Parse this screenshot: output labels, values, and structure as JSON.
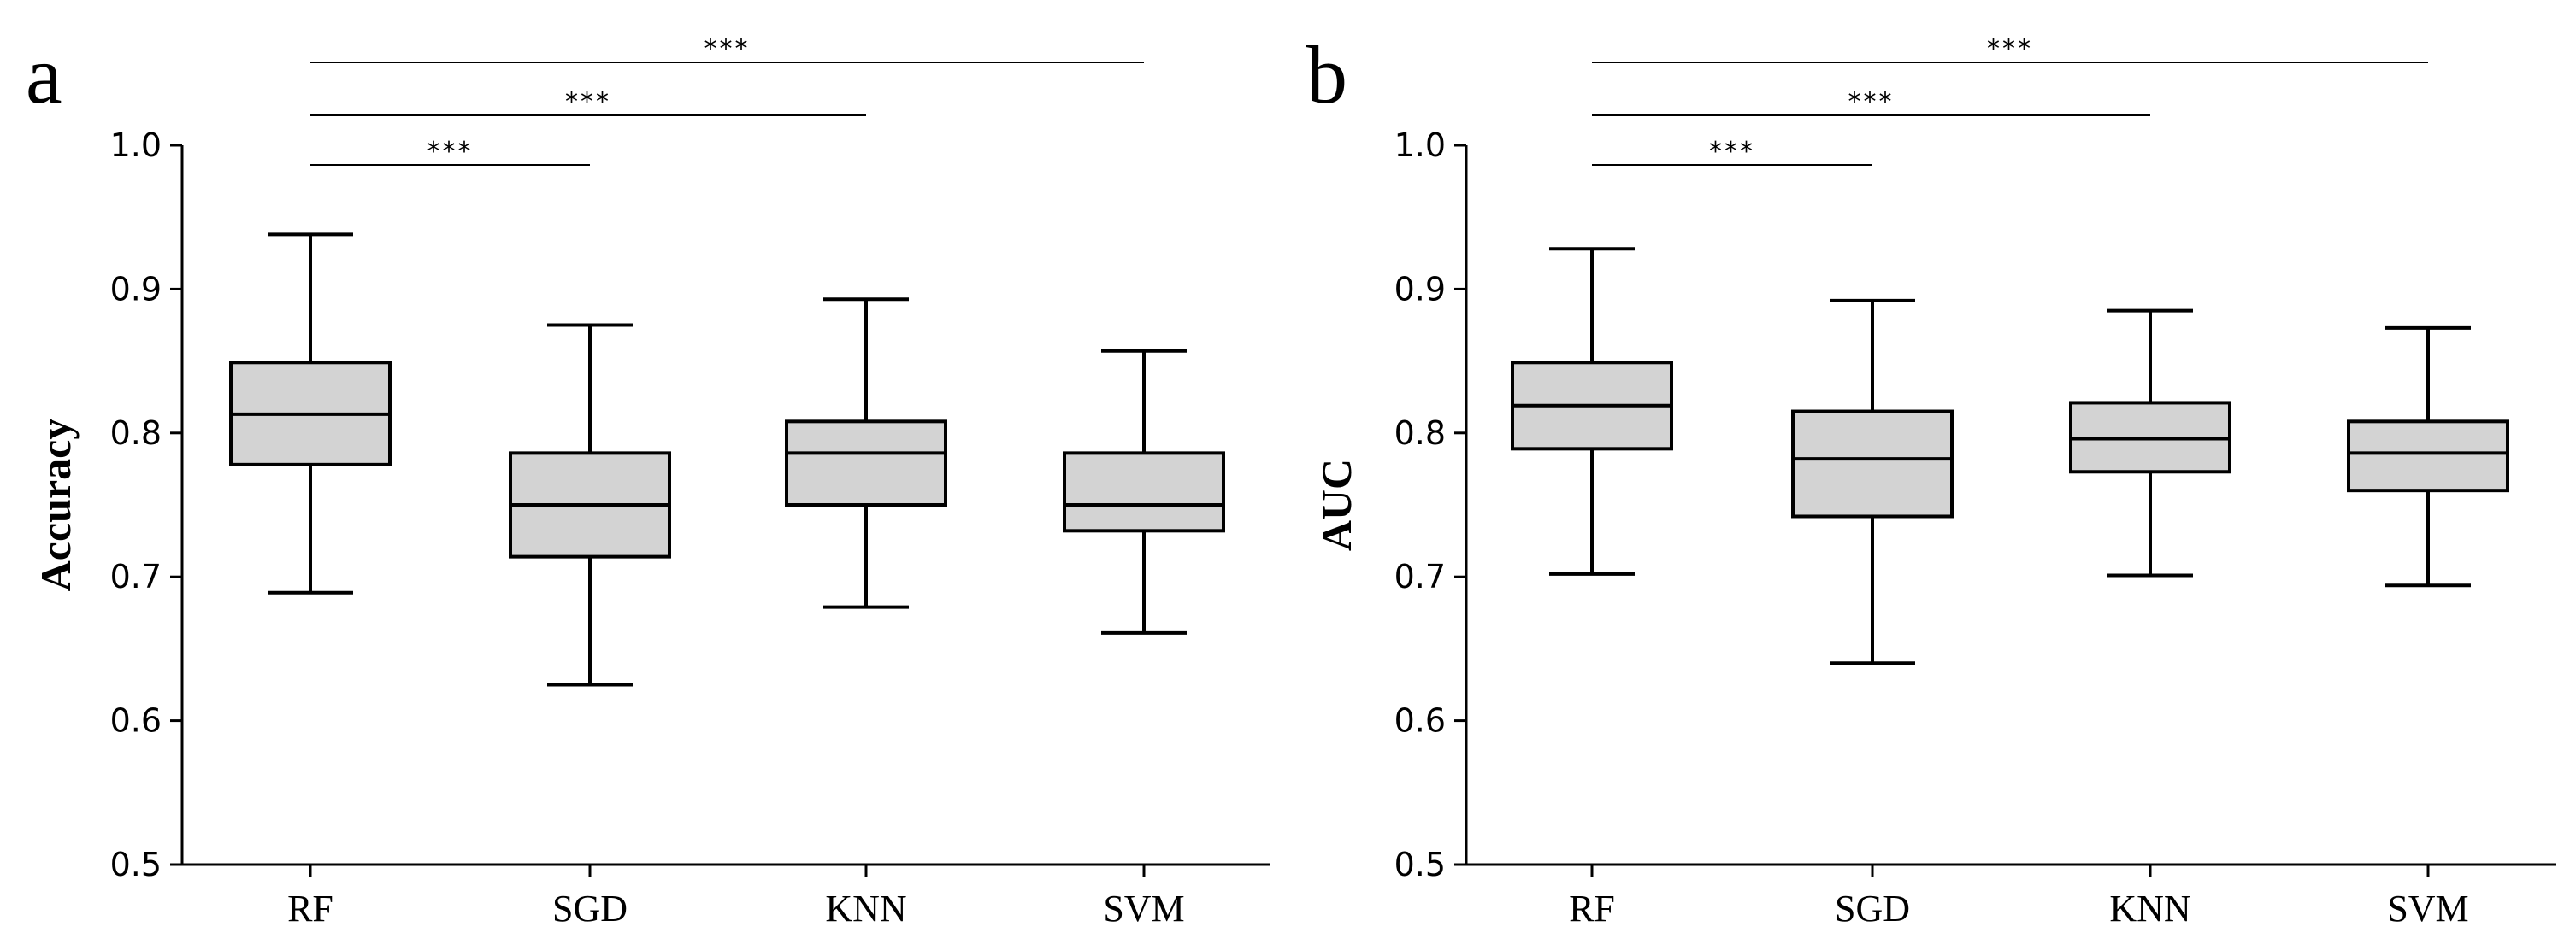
{
  "chart_data": [
    {
      "type": "box",
      "panel_label": "a",
      "ylabel": "Accuracy",
      "xlabel": "",
      "ylim": [
        0.5,
        1.0
      ],
      "yticks": [
        "0.5",
        "0.6",
        "0.7",
        "0.8",
        "0.9",
        "1.0"
      ],
      "categories": [
        "RF",
        "SGD",
        "KNN",
        "SVM"
      ],
      "boxes": [
        {
          "name": "RF",
          "min": 0.689,
          "q1": 0.778,
          "median": 0.813,
          "q3": 0.849,
          "max": 0.938
        },
        {
          "name": "SGD",
          "min": 0.625,
          "q1": 0.714,
          "median": 0.75,
          "q3": 0.786,
          "max": 0.875
        },
        {
          "name": "KNN",
          "min": 0.679,
          "q1": 0.75,
          "median": 0.786,
          "q3": 0.808,
          "max": 0.893
        },
        {
          "name": "SVM",
          "min": 0.661,
          "q1": 0.732,
          "median": 0.75,
          "q3": 0.786,
          "max": 0.857
        }
      ],
      "significance": [
        {
          "from": "RF",
          "to": "SGD",
          "label": "***"
        },
        {
          "from": "RF",
          "to": "KNN",
          "label": "***"
        },
        {
          "from": "RF",
          "to": "SVM",
          "label": "***"
        }
      ]
    },
    {
      "type": "box",
      "panel_label": "b",
      "ylabel": "AUC",
      "xlabel": "",
      "ylim": [
        0.5,
        1.0
      ],
      "yticks": [
        "0.5",
        "0.6",
        "0.7",
        "0.8",
        "0.9",
        "1.0"
      ],
      "categories": [
        "RF",
        "SGD",
        "KNN",
        "SVM"
      ],
      "boxes": [
        {
          "name": "RF",
          "min": 0.702,
          "q1": 0.789,
          "median": 0.819,
          "q3": 0.849,
          "max": 0.928
        },
        {
          "name": "SGD",
          "min": 0.64,
          "q1": 0.742,
          "median": 0.782,
          "q3": 0.815,
          "max": 0.892
        },
        {
          "name": "KNN",
          "min": 0.701,
          "q1": 0.773,
          "median": 0.796,
          "q3": 0.821,
          "max": 0.885
        },
        {
          "name": "SVM",
          "min": 0.694,
          "q1": 0.76,
          "median": 0.786,
          "q3": 0.808,
          "max": 0.873
        }
      ],
      "significance": [
        {
          "from": "RF",
          "to": "SGD",
          "label": "***"
        },
        {
          "from": "RF",
          "to": "KNN",
          "label": "***"
        },
        {
          "from": "RF",
          "to": "SVM",
          "label": "***"
        }
      ]
    }
  ]
}
